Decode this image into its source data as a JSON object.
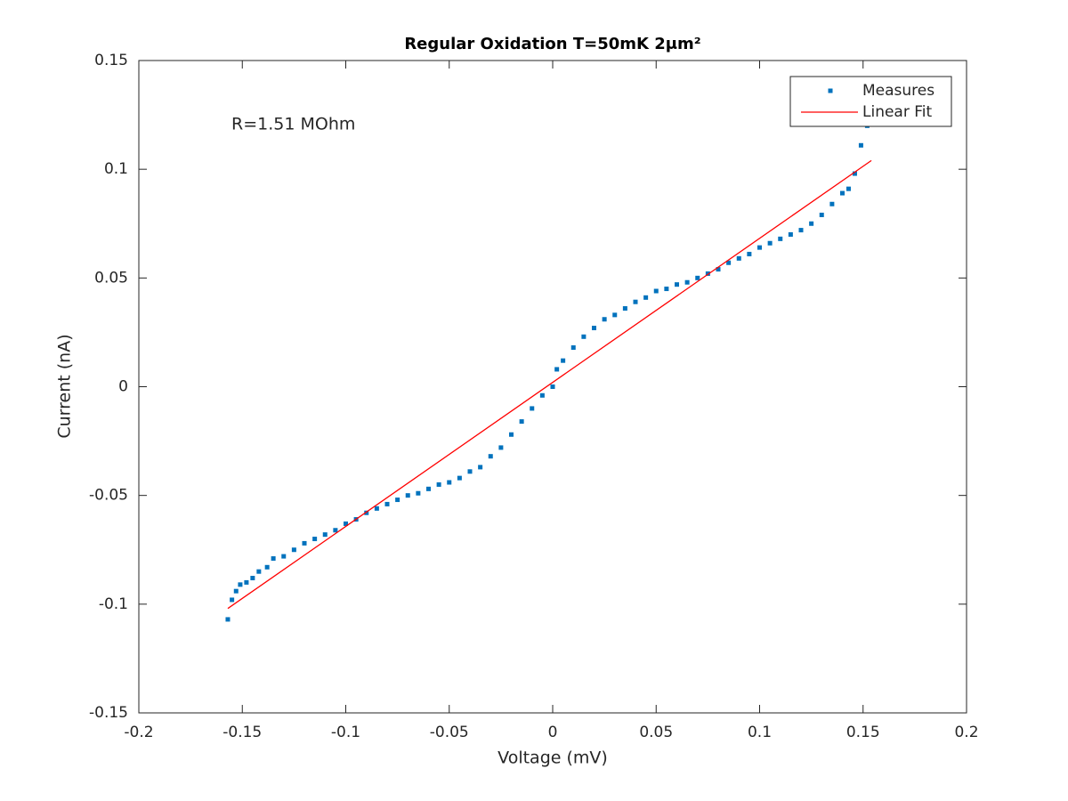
{
  "chart_data": {
    "type": "scatter",
    "title": "Regular Oxidation T=50mK 2μm²",
    "x_label": "Voltage (mV)",
    "y_label": "Current (nA)",
    "annotation": "R=1.51 MOhm",
    "xlim": [
      -0.2,
      0.2
    ],
    "ylim": [
      -0.15,
      0.15
    ],
    "xticks": [
      -0.2,
      -0.15,
      -0.1,
      -0.05,
      0,
      0.05,
      0.1,
      0.15,
      0.2
    ],
    "yticks": [
      -0.15,
      -0.1,
      -0.05,
      0,
      0.05,
      0.1,
      0.15
    ],
    "legend": "northeast",
    "series": [
      {
        "name": "Measures",
        "color": "#0072bd",
        "kind": "markers",
        "x": [
          -0.157,
          -0.155,
          -0.153,
          -0.151,
          -0.148,
          -0.145,
          -0.142,
          -0.138,
          -0.135,
          -0.13,
          -0.125,
          -0.12,
          -0.115,
          -0.11,
          -0.105,
          -0.1,
          -0.095,
          -0.09,
          -0.085,
          -0.08,
          -0.075,
          -0.07,
          -0.065,
          -0.06,
          -0.055,
          -0.05,
          -0.045,
          -0.04,
          -0.035,
          -0.03,
          -0.025,
          -0.02,
          -0.015,
          -0.01,
          -0.005,
          0,
          0.002,
          0.005,
          0.01,
          0.015,
          0.02,
          0.025,
          0.03,
          0.035,
          0.04,
          0.045,
          0.05,
          0.055,
          0.06,
          0.065,
          0.07,
          0.075,
          0.08,
          0.085,
          0.09,
          0.095,
          0.1,
          0.105,
          0.11,
          0.115,
          0.12,
          0.125,
          0.13,
          0.135,
          0.14,
          0.143,
          0.146,
          0.149,
          0.152
        ],
        "values": [
          -0.107,
          -0.098,
          -0.094,
          -0.091,
          -0.09,
          -0.088,
          -0.085,
          -0.083,
          -0.079,
          -0.078,
          -0.075,
          -0.072,
          -0.07,
          -0.068,
          -0.066,
          -0.063,
          -0.061,
          -0.058,
          -0.056,
          -0.054,
          -0.052,
          -0.05,
          -0.049,
          -0.047,
          -0.045,
          -0.044,
          -0.042,
          -0.039,
          -0.037,
          -0.032,
          -0.028,
          -0.022,
          -0.016,
          -0.01,
          -0.004,
          0,
          0.008,
          0.012,
          0.018,
          0.023,
          0.027,
          0.031,
          0.033,
          0.036,
          0.039,
          0.041,
          0.044,
          0.045,
          0.047,
          0.048,
          0.05,
          0.052,
          0.054,
          0.057,
          0.059,
          0.061,
          0.064,
          0.066,
          0.068,
          0.07,
          0.072,
          0.075,
          0.079,
          0.084,
          0.089,
          0.091,
          0.098,
          0.111,
          0.12
        ]
      },
      {
        "name": "Linear Fit",
        "color": "#ff0000",
        "kind": "line",
        "x": [
          -0.157,
          0.154
        ],
        "values": [
          -0.102,
          0.104
        ]
      }
    ]
  }
}
